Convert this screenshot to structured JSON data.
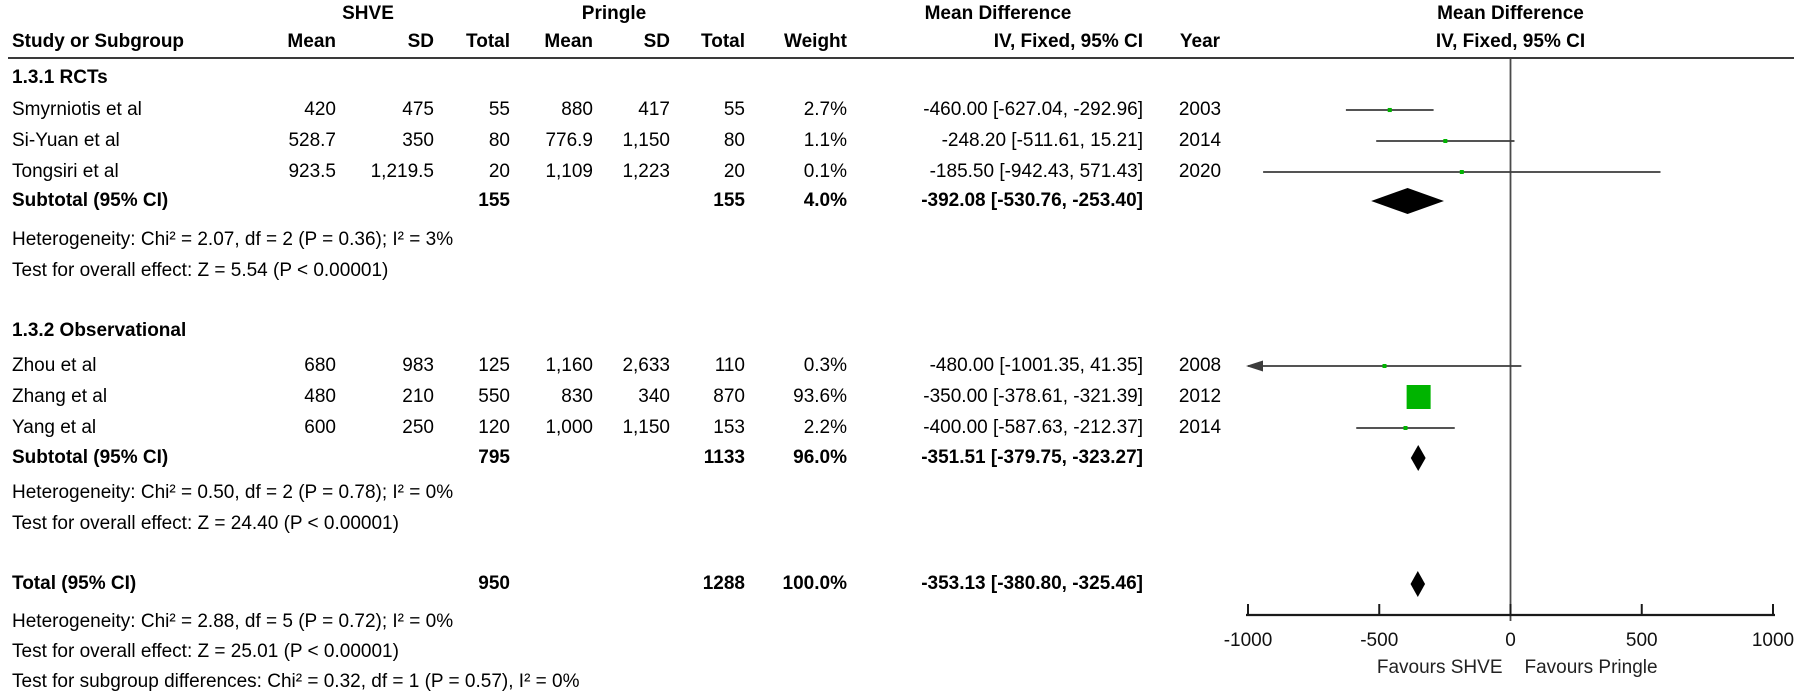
{
  "header": {
    "group1": "SHVE",
    "group2": "Pringle",
    "col_study": "Study or Subgroup",
    "col_mean": "Mean",
    "col_sd": "SD",
    "col_total": "Total",
    "col_weight": "Weight",
    "col_year": "Year",
    "md_title": "Mean Difference",
    "md_sub": "IV, Fixed, 95% CI",
    "plot_title": "Mean Difference",
    "plot_sub": "IV, Fixed, 95% CI"
  },
  "chart_data": {
    "type": "forest",
    "effect_measure": "Mean Difference",
    "method": "IV, Fixed, 95% CI",
    "axis": {
      "min": -1000,
      "max": 1000,
      "ticks": [
        -1000,
        -500,
        0,
        500,
        1000
      ],
      "tick_labels": [
        "-1000",
        "-500",
        "0",
        "500",
        "1000"
      ],
      "favours_left": "Favours SHVE",
      "favours_right": "Favours Pringle"
    },
    "sections": [
      {
        "title": "1.3.1 RCTs",
        "rows": [
          {
            "study": "Smyrniotis et al",
            "mean1": "420",
            "sd1": "475",
            "total1": "55",
            "mean2": "880",
            "sd2": "417",
            "total2": "55",
            "weight": "2.7%",
            "ci_text": "-460.00 [-627.04, -292.96]",
            "year": "2003",
            "md": -460.0,
            "lo": -627.04,
            "hi": -292.96,
            "w": 2.7
          },
          {
            "study": "Si-Yuan et al",
            "mean1": "528.7",
            "sd1": "350",
            "total1": "80",
            "mean2": "776.9",
            "sd2": "1,150",
            "total2": "80",
            "weight": "1.1%",
            "ci_text": "-248.20 [-511.61, 15.21]",
            "year": "2014",
            "md": -248.2,
            "lo": -511.61,
            "hi": 15.21,
            "w": 1.1
          },
          {
            "study": "Tongsiri et al",
            "mean1": "923.5",
            "sd1": "1,219.5",
            "total1": "20",
            "mean2": "1,109",
            "sd2": "1,223",
            "total2": "20",
            "weight": "0.1%",
            "ci_text": "-185.50 [-942.43, 571.43]",
            "year": "2020",
            "md": -185.5,
            "lo": -942.43,
            "hi": 571.43,
            "w": 0.1
          }
        ],
        "subtotal": {
          "label": "Subtotal (95% CI)",
          "total1": "155",
          "total2": "155",
          "weight": "4.0%",
          "ci_text": "-392.08 [-530.76, -253.40]",
          "md": -392.08,
          "lo": -530.76,
          "hi": -253.4
        },
        "heterogeneity": "Heterogeneity: Chi² = 2.07, df = 2 (P = 0.36); I² = 3%",
        "overall_effect": "Test for overall effect: Z = 5.54 (P < 0.00001)"
      },
      {
        "title": "1.3.2 Observational",
        "rows": [
          {
            "study": "Zhou et al",
            "mean1": "680",
            "sd1": "983",
            "total1": "125",
            "mean2": "1,160",
            "sd2": "2,633",
            "total2": "110",
            "weight": "0.3%",
            "ci_text": "-480.00 [-1001.35, 41.35]",
            "year": "2008",
            "md": -480.0,
            "lo": -1001.35,
            "hi": 41.35,
            "w": 0.3
          },
          {
            "study": "Zhang et al",
            "mean1": "480",
            "sd1": "210",
            "total1": "550",
            "mean2": "830",
            "sd2": "340",
            "total2": "870",
            "weight": "93.6%",
            "ci_text": "-350.00 [-378.61, -321.39]",
            "year": "2012",
            "md": -350.0,
            "lo": -378.61,
            "hi": -321.39,
            "w": 93.6
          },
          {
            "study": "Yang et al",
            "mean1": "600",
            "sd1": "250",
            "total1": "120",
            "mean2": "1,000",
            "sd2": "1,150",
            "total2": "153",
            "weight": "2.2%",
            "ci_text": "-400.00 [-587.63, -212.37]",
            "year": "2014",
            "md": -400.0,
            "lo": -587.63,
            "hi": -212.37,
            "w": 2.2
          }
        ],
        "subtotal": {
          "label": "Subtotal (95% CI)",
          "total1": "795",
          "total2": "1133",
          "weight": "96.0%",
          "ci_text": "-351.51 [-379.75, -323.27]",
          "md": -351.51,
          "lo": -379.75,
          "hi": -323.27
        },
        "heterogeneity": "Heterogeneity: Chi² = 0.50, df = 2 (P = 0.78); I² = 0%",
        "overall_effect": "Test for overall effect: Z = 24.40 (P < 0.00001)"
      }
    ],
    "total": {
      "label": "Total (95% CI)",
      "total1": "950",
      "total2": "1288",
      "weight": "100.0%",
      "ci_text": "-353.13 [-380.80, -325.46]",
      "md": -353.13,
      "lo": -380.8,
      "hi": -325.46
    },
    "footnotes": [
      "Heterogeneity: Chi² = 2.88, df = 5 (P = 0.72); I² = 0%",
      "Test for overall effect: Z = 25.01 (P < 0.00001)",
      "Test for subgroup differences: Chi² = 0.32, df = 1 (P = 0.57), I² = 0%"
    ]
  },
  "colors": {
    "marker_green": "#00b400",
    "diamond_black": "#000000",
    "ci_line": "#3c3c3c",
    "axis": "#1a1a1a",
    "zero_line": "#4a4a4a",
    "favours_text": "#222222"
  }
}
